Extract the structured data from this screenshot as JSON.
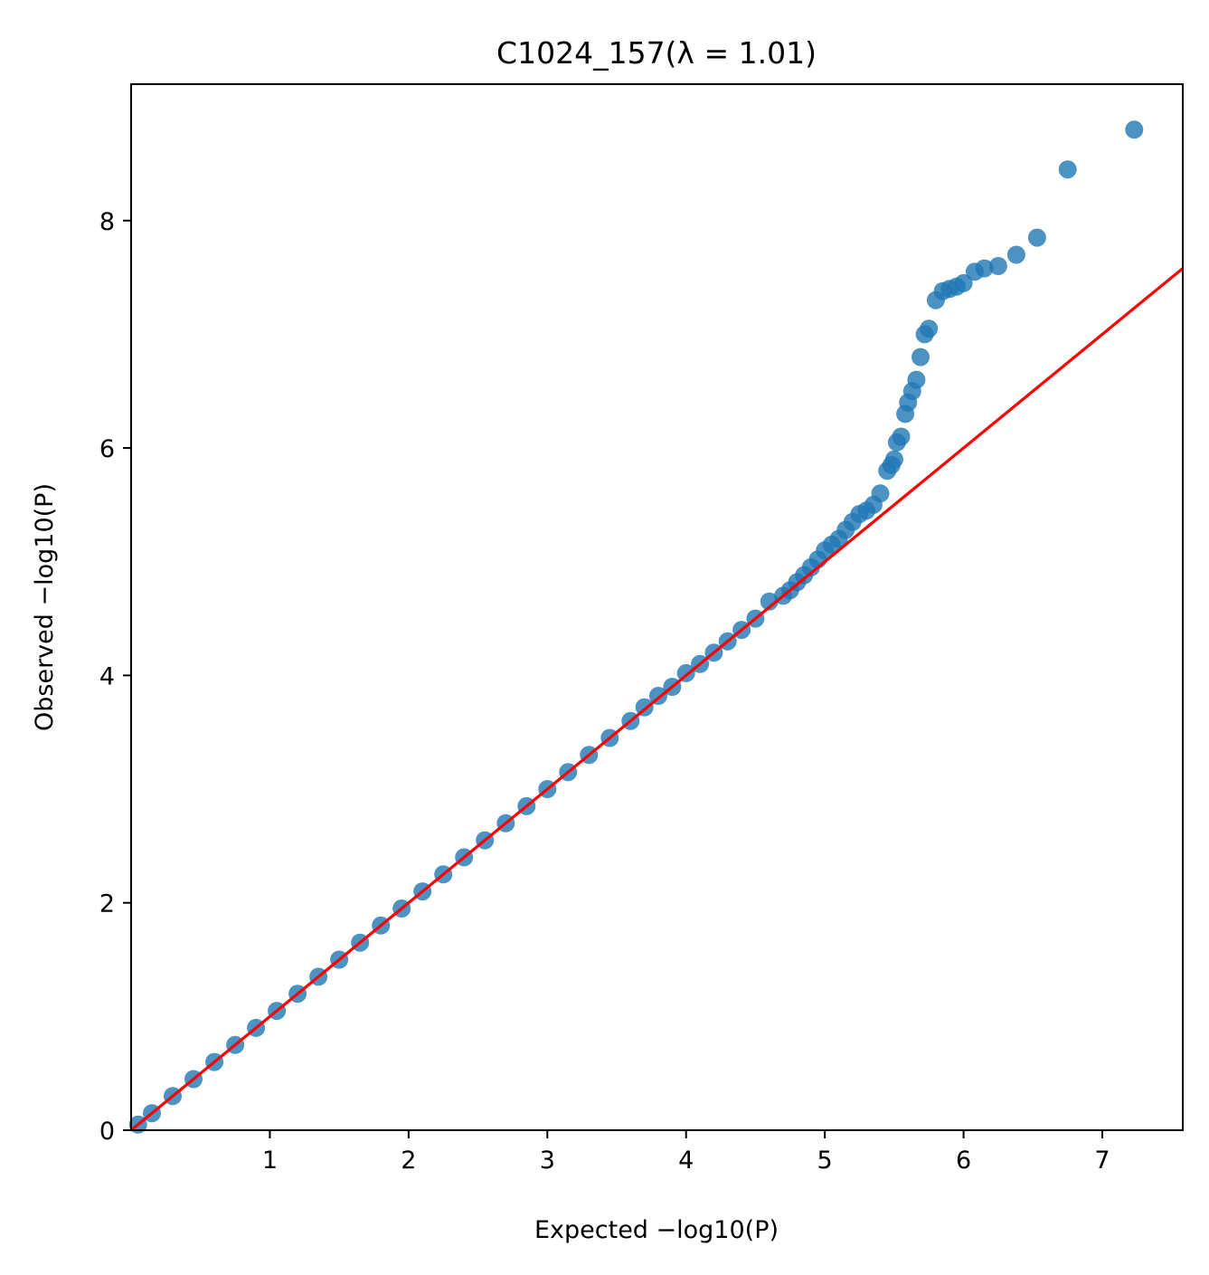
{
  "chart_data": {
    "type": "scatter",
    "title": "C1024_157(λ = 1.01)",
    "xlabel": "Expected −log10(P)",
    "ylabel": "Observed −log10(P)",
    "xlim": [
      0,
      7.58
    ],
    "ylim": [
      0,
      9.2
    ],
    "x_ticks": [
      1,
      2,
      3,
      4,
      5,
      6,
      7
    ],
    "x_tick_labels": [
      "1",
      "2",
      "3",
      "4",
      "5",
      "6",
      "7"
    ],
    "y_ticks": [
      0,
      2,
      4,
      6,
      8
    ],
    "y_tick_labels": [
      "0",
      "2",
      "4",
      "6",
      "8"
    ],
    "grid": false,
    "colors": {
      "points": "#1f77b4",
      "reference_line": "#ff0000"
    },
    "reference_line": {
      "name": "y = x",
      "from": [
        0,
        0
      ],
      "to": [
        7.58,
        7.58
      ]
    },
    "points": {
      "x": [
        0.05,
        0.15,
        0.3,
        0.45,
        0.6,
        0.75,
        0.9,
        1.05,
        1.2,
        1.35,
        1.5,
        1.65,
        1.8,
        1.95,
        2.1,
        2.25,
        2.4,
        2.55,
        2.7,
        2.85,
        3.0,
        3.15,
        3.3,
        3.45,
        3.6,
        3.7,
        3.8,
        3.9,
        4.0,
        4.1,
        4.2,
        4.3,
        4.4,
        4.5,
        4.6,
        4.7,
        4.75,
        4.8,
        4.85,
        4.9,
        4.95,
        5.0,
        5.05,
        5.1,
        5.15,
        5.2,
        5.25,
        5.3,
        5.35,
        5.4,
        5.45,
        5.48,
        5.5,
        5.52,
        5.55,
        5.58,
        5.6,
        5.63,
        5.66,
        5.69,
        5.72,
        5.75,
        5.8,
        5.85,
        5.9,
        5.95,
        6.0,
        6.08,
        6.15,
        6.25,
        6.38,
        6.53,
        6.75,
        7.23
      ],
      "y": [
        0.05,
        0.15,
        0.3,
        0.45,
        0.6,
        0.75,
        0.9,
        1.05,
        1.2,
        1.35,
        1.5,
        1.65,
        1.8,
        1.95,
        2.1,
        2.25,
        2.4,
        2.55,
        2.7,
        2.85,
        3.0,
        3.15,
        3.3,
        3.45,
        3.6,
        3.72,
        3.82,
        3.9,
        4.02,
        4.1,
        4.2,
        4.3,
        4.4,
        4.5,
        4.65,
        4.7,
        4.75,
        4.82,
        4.88,
        4.95,
        5.02,
        5.1,
        5.15,
        5.2,
        5.28,
        5.35,
        5.42,
        5.45,
        5.5,
        5.6,
        5.8,
        5.85,
        5.9,
        6.05,
        6.1,
        6.3,
        6.4,
        6.5,
        6.6,
        6.8,
        7.0,
        7.05,
        7.3,
        7.38,
        7.4,
        7.42,
        7.45,
        7.55,
        7.58,
        7.6,
        7.7,
        7.85,
        8.45,
        8.8
      ]
    }
  }
}
